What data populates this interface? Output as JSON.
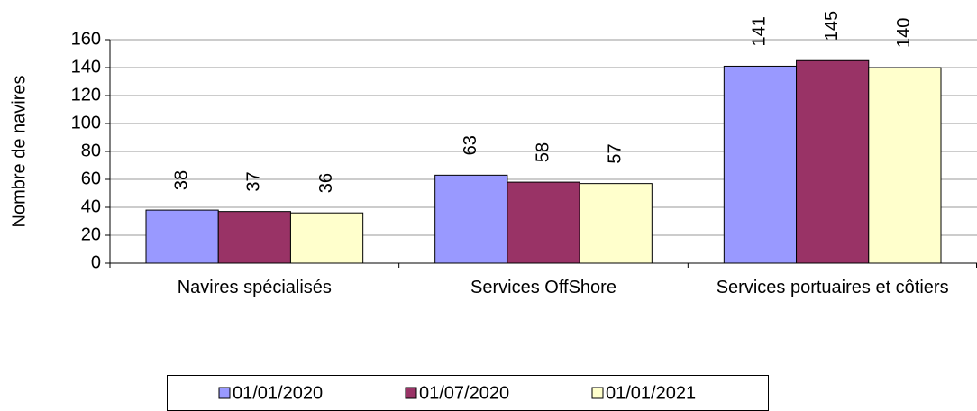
{
  "chart_data": {
    "type": "bar",
    "y_label": "Nombre de navires",
    "categories": [
      "Navires spécialisés",
      "Services OffShore",
      "Services portuaires et côtiers"
    ],
    "series": [
      {
        "name": "01/01/2020",
        "color": "#9999ff",
        "values": [
          38,
          63,
          141
        ]
      },
      {
        "name": "01/07/2020",
        "color": "#993366",
        "values": [
          37,
          58,
          145
        ]
      },
      {
        "name": "01/01/2021",
        "color": "#ffffcc",
        "values": [
          36,
          57,
          140
        ]
      }
    ],
    "ylim": [
      0,
      160
    ],
    "yticks": [
      0,
      20,
      40,
      60,
      80,
      100,
      120,
      140,
      160
    ],
    "grid": true,
    "legend": "bottom"
  }
}
